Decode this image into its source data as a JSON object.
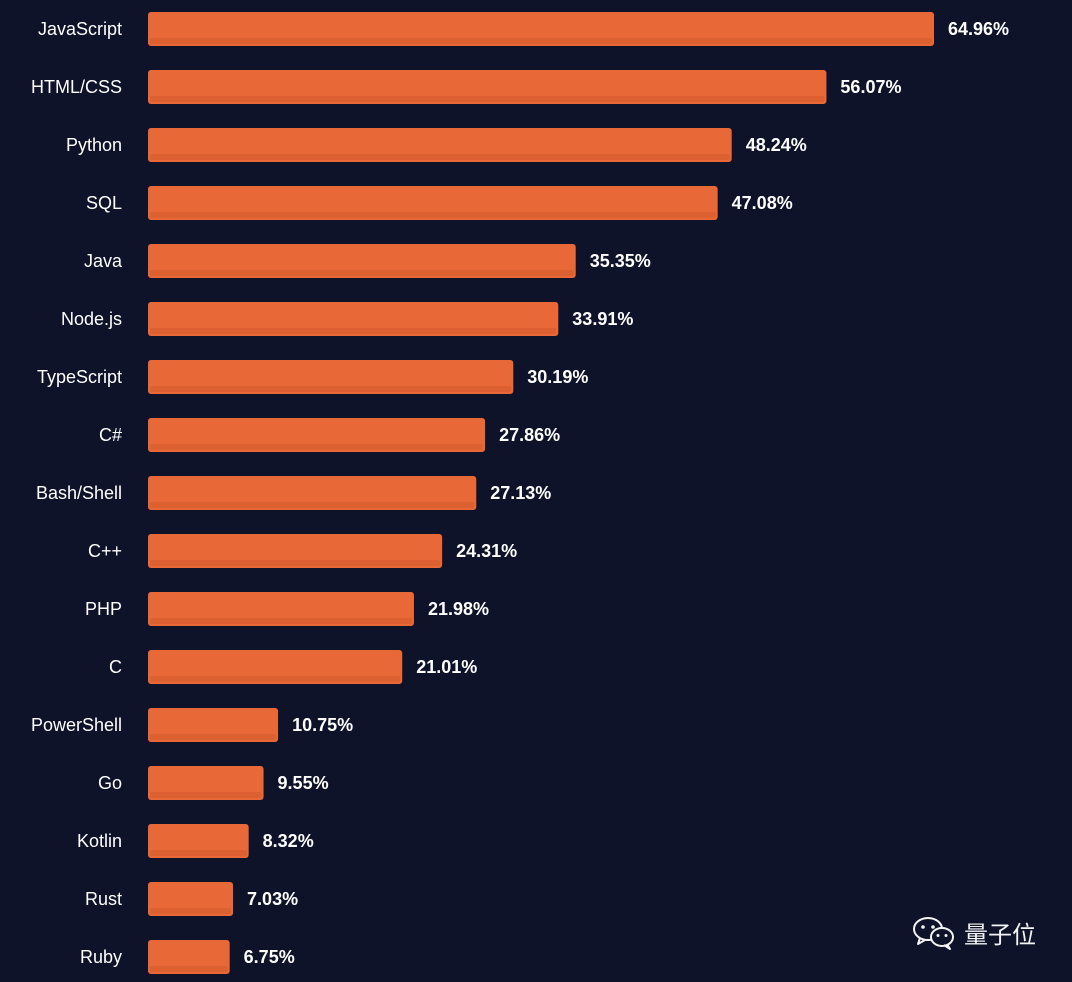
{
  "chart_data": {
    "type": "bar",
    "orientation": "horizontal",
    "title": "",
    "xlabel": "",
    "ylabel": "",
    "xlim": [
      0,
      64.96
    ],
    "categories": [
      "JavaScript",
      "HTML/CSS",
      "Python",
      "SQL",
      "Java",
      "Node.js",
      "TypeScript",
      "C#",
      "Bash/Shell",
      "C++",
      "PHP",
      "C",
      "PowerShell",
      "Go",
      "Kotlin",
      "Rust",
      "Ruby"
    ],
    "values": [
      64.96,
      56.07,
      48.24,
      47.08,
      35.35,
      33.91,
      30.19,
      27.86,
      27.13,
      24.31,
      21.98,
      21.01,
      10.75,
      9.55,
      8.32,
      7.03,
      6.75
    ],
    "value_labels": [
      "64.96%",
      "56.07%",
      "48.24%",
      "47.08%",
      "35.35%",
      "33.91%",
      "30.19%",
      "27.86%",
      "27.13%",
      "24.31%",
      "21.98%",
      "21.01%",
      "10.75%",
      "9.55%",
      "8.32%",
      "7.03%",
      "6.75%"
    ],
    "grid": false,
    "legend": "none"
  },
  "colors": {
    "background": "#0e1329",
    "bar": "#e96837",
    "bar_shadow": "#d25a2c",
    "text": "#ffffff"
  },
  "watermark": {
    "icon": "wechat-icon",
    "text": "量子位"
  }
}
